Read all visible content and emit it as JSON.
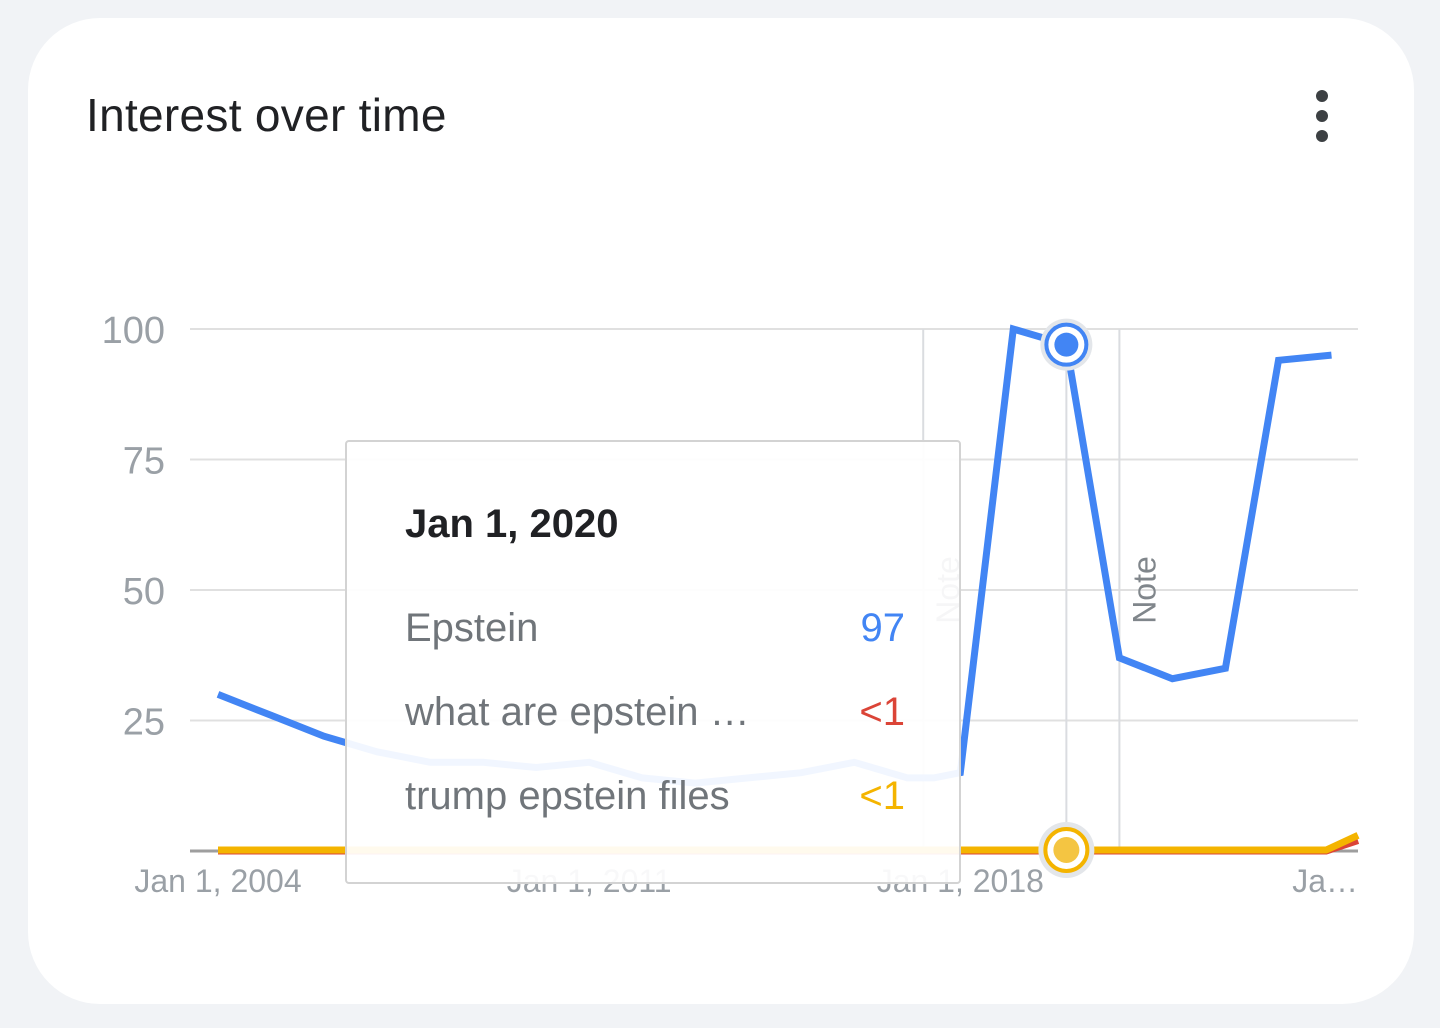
{
  "card": {
    "title": "Interest over time",
    "menu_icon": "more-vert-icon"
  },
  "tooltip": {
    "date": "Jan 1, 2020",
    "rows": [
      {
        "label": "Epstein",
        "value": "97",
        "color": "#4285f4"
      },
      {
        "label": "what are epstein …",
        "value": "<1",
        "color": "#db4437"
      },
      {
        "label": "trump epstein files",
        "value": "<1",
        "color": "#f4b400"
      }
    ]
  },
  "chart_data": {
    "type": "line",
    "title": "Interest over time",
    "ylim": [
      0,
      100
    ],
    "y_ticks": [
      25,
      50,
      75,
      100
    ],
    "y_tick_labels": [
      "25",
      "50",
      "75",
      "100"
    ],
    "x_tick_labels": [
      "Jan 1, 2004",
      "Jan 1, 2011",
      "Jan 1, 2018",
      "Ja…"
    ],
    "x_tick_years": [
      2004,
      2011,
      2018,
      2025
    ],
    "xlim": [
      2004,
      2025.5
    ],
    "grid": true,
    "annotations": [
      {
        "label": "Note",
        "x": 2017.3
      },
      {
        "label": "Note",
        "x": 2021.0
      }
    ],
    "hover": {
      "x": 2020.0
    },
    "series": [
      {
        "name": "Epstein",
        "color": "#4285f4",
        "x": [
          2004,
          2005,
          2006,
          2007,
          2008,
          2009,
          2010,
          2011,
          2012,
          2013,
          2014,
          2015,
          2016,
          2017,
          2017.5,
          2018,
          2019,
          2020,
          2021,
          2022,
          2023,
          2024,
          2025
        ],
        "y": [
          30,
          26,
          22,
          19,
          17,
          17,
          16,
          17,
          14,
          13,
          14,
          15,
          17,
          14,
          14,
          15,
          100,
          97,
          37,
          33,
          35,
          94,
          95
        ]
      },
      {
        "name": "what are epstein …",
        "color": "#db4437",
        "x": [
          2004,
          2024.9,
          2025.5
        ],
        "y": [
          0,
          0,
          2
        ]
      },
      {
        "name": "trump epstein files",
        "color": "#f4b400",
        "x": [
          2004,
          2024.9,
          2025.5
        ],
        "y": [
          0.2,
          0.2,
          3
        ]
      }
    ]
  }
}
